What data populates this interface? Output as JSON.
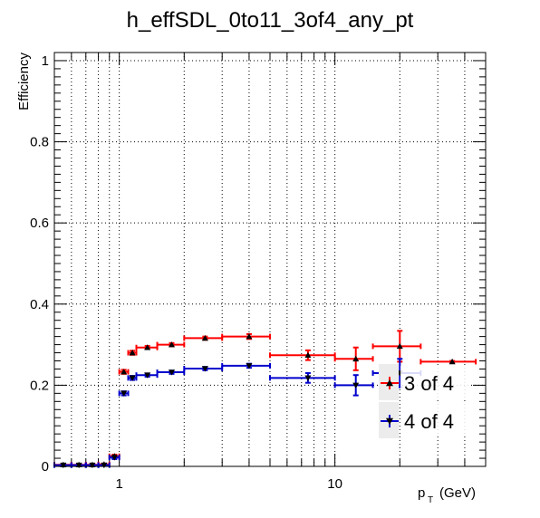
{
  "chart_data": {
    "type": "scatter",
    "title": "h_effSDL_0to11_3of4_any_pt",
    "xlabel_main": "p",
    "xlabel_sub": "T",
    "xlabel_unit": "(GeV)",
    "ylabel": "Efficiency",
    "x_scale": "log",
    "xlim": [
      0.5,
      50
    ],
    "ylim": [
      0,
      1.02
    ],
    "x_ticks": [
      1,
      10
    ],
    "x_tick_labels": [
      "1",
      "10"
    ],
    "y_ticks": [
      0,
      0.2,
      0.4,
      0.6,
      0.8,
      1
    ],
    "y_tick_labels": [
      "0",
      "0.2",
      "0.4",
      "0.6",
      "0.8",
      "1"
    ],
    "grid": true,
    "legend_position": "bottom-right",
    "series": [
      {
        "name": "3 of 4",
        "color": "#ff0000",
        "marker": "triangle-up",
        "points": [
          {
            "x": 0.55,
            "xlo": 0.5,
            "xhi": 0.6,
            "y": 0.004,
            "yerr": 0.002
          },
          {
            "x": 0.65,
            "xlo": 0.6,
            "xhi": 0.7,
            "y": 0.004,
            "yerr": 0.002
          },
          {
            "x": 0.75,
            "xlo": 0.7,
            "xhi": 0.8,
            "y": 0.004,
            "yerr": 0.002
          },
          {
            "x": 0.85,
            "xlo": 0.8,
            "xhi": 0.9,
            "y": 0.005,
            "yerr": 0.002
          },
          {
            "x": 0.95,
            "xlo": 0.9,
            "xhi": 1.0,
            "y": 0.025,
            "yerr": 0.004
          },
          {
            "x": 1.05,
            "xlo": 1.0,
            "xhi": 1.1,
            "y": 0.233,
            "yerr": 0.005
          },
          {
            "x": 1.15,
            "xlo": 1.1,
            "xhi": 1.2,
            "y": 0.28,
            "yerr": 0.005
          },
          {
            "x": 1.35,
            "xlo": 1.2,
            "xhi": 1.5,
            "y": 0.293,
            "yerr": 0.004
          },
          {
            "x": 1.75,
            "xlo": 1.5,
            "xhi": 2.0,
            "y": 0.3,
            "yerr": 0.004
          },
          {
            "x": 2.5,
            "xlo": 2.0,
            "xhi": 3.0,
            "y": 0.316,
            "yerr": 0.004
          },
          {
            "x": 4.0,
            "xlo": 3.0,
            "xhi": 5.0,
            "y": 0.32,
            "yerr": 0.006
          },
          {
            "x": 7.5,
            "xlo": 5.0,
            "xhi": 10.0,
            "y": 0.274,
            "yerr": 0.012
          },
          {
            "x": 12.5,
            "xlo": 10.0,
            "xhi": 15.0,
            "y": 0.265,
            "yerr": 0.028
          },
          {
            "x": 20.0,
            "xlo": 15.0,
            "xhi": 25.0,
            "y": 0.296,
            "yerr": 0.038
          },
          {
            "x": 35.0,
            "xlo": 25.0,
            "xhi": 45.0,
            "y": 0.258,
            "yerr": 0.002
          }
        ]
      },
      {
        "name": "4 of 4",
        "color": "#0000cc",
        "marker": "triangle-down",
        "points": [
          {
            "x": 0.55,
            "xlo": 0.5,
            "xhi": 0.6,
            "y": 0.003,
            "yerr": 0.002
          },
          {
            "x": 0.65,
            "xlo": 0.6,
            "xhi": 0.7,
            "y": 0.003,
            "yerr": 0.002
          },
          {
            "x": 0.75,
            "xlo": 0.7,
            "xhi": 0.8,
            "y": 0.003,
            "yerr": 0.002
          },
          {
            "x": 0.85,
            "xlo": 0.8,
            "xhi": 0.9,
            "y": 0.003,
            "yerr": 0.002
          },
          {
            "x": 0.95,
            "xlo": 0.9,
            "xhi": 1.0,
            "y": 0.022,
            "yerr": 0.004
          },
          {
            "x": 1.05,
            "xlo": 1.0,
            "xhi": 1.1,
            "y": 0.18,
            "yerr": 0.005
          },
          {
            "x": 1.15,
            "xlo": 1.1,
            "xhi": 1.2,
            "y": 0.218,
            "yerr": 0.005
          },
          {
            "x": 1.35,
            "xlo": 1.2,
            "xhi": 1.5,
            "y": 0.225,
            "yerr": 0.004
          },
          {
            "x": 1.75,
            "xlo": 1.5,
            "xhi": 2.0,
            "y": 0.232,
            "yerr": 0.004
          },
          {
            "x": 2.5,
            "xlo": 2.0,
            "xhi": 3.0,
            "y": 0.241,
            "yerr": 0.004
          },
          {
            "x": 4.0,
            "xlo": 3.0,
            "xhi": 5.0,
            "y": 0.248,
            "yerr": 0.005
          },
          {
            "x": 7.5,
            "xlo": 5.0,
            "xhi": 10.0,
            "y": 0.218,
            "yerr": 0.012
          },
          {
            "x": 12.5,
            "xlo": 10.0,
            "xhi": 15.0,
            "y": 0.2,
            "yerr": 0.025
          },
          {
            "x": 20.0,
            "xlo": 15.0,
            "xhi": 25.0,
            "y": 0.23,
            "yerr": 0.035
          }
        ]
      }
    ]
  }
}
